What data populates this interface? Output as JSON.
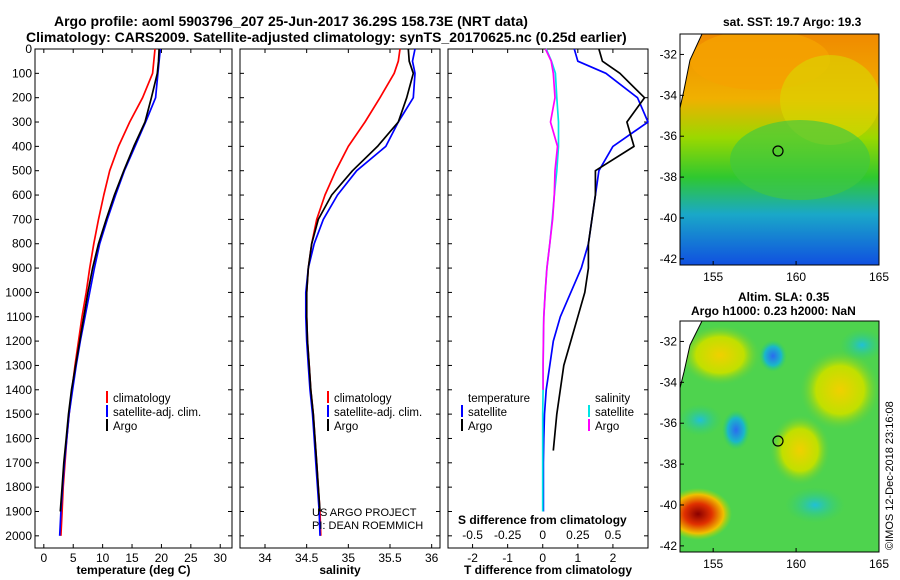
{
  "titles": {
    "line1": "Argo profile: aoml 5903796_207 25-Jun-2017 36.29S 158.73E (NRT data)",
    "line2": "Climatology: CARS2009. Satellite-adjusted climatology: synTS_20170625.nc (0.25d earlier)"
  },
  "colors": {
    "climatology": "#ff0000",
    "satellite": "#0000ff",
    "argo": "#000000",
    "s_sat": "#00e5e5",
    "s_argo": "#ff00ff"
  },
  "chart_data": [
    {
      "type": "line",
      "xlabel": "temperature (deg C)",
      "xlim": [
        -1.5,
        32
      ],
      "ylim": [
        2050,
        0
      ],
      "yticks": [
        0,
        100,
        200,
        300,
        400,
        500,
        600,
        700,
        800,
        900,
        1000,
        1100,
        1200,
        1300,
        1400,
        1500,
        1600,
        1700,
        1800,
        1900,
        2000
      ],
      "xticks": [
        0,
        5,
        10,
        15,
        20,
        25,
        30
      ],
      "legend": [
        "climatology",
        "satellite-adj. clim.",
        "Argo"
      ],
      "series": [
        {
          "name": "climatology",
          "color_key": "climatology",
          "x": [
            18.9,
            18.7,
            18.5,
            16.8,
            14.6,
            12.7,
            11.2,
            10.2,
            9.3,
            8.5,
            7.8,
            7.2,
            6.5,
            5.9,
            5.3,
            4.8,
            4.3,
            3.9,
            3.6,
            3.3,
            3.1,
            2.9
          ],
          "y": [
            0,
            50,
            100,
            200,
            300,
            400,
            500,
            600,
            700,
            800,
            900,
            1000,
            1100,
            1200,
            1300,
            1400,
            1500,
            1600,
            1700,
            1800,
            1900,
            2000
          ]
        },
        {
          "name": "satellite-adj. clim.",
          "color_key": "satellite",
          "x": [
            19.8,
            19.6,
            19.4,
            19.0,
            17.3,
            15.5,
            13.7,
            12.2,
            10.8,
            9.5,
            8.6,
            7.8,
            7.0,
            6.2,
            5.5,
            4.9,
            4.3,
            3.9,
            3.5,
            3.2,
            2.9,
            2.7
          ],
          "y": [
            0,
            50,
            100,
            200,
            300,
            400,
            500,
            600,
            700,
            800,
            900,
            1000,
            1100,
            1200,
            1300,
            1400,
            1500,
            1600,
            1700,
            1800,
            1900,
            2000
          ]
        },
        {
          "name": "Argo",
          "color_key": "argo",
          "x": [
            19.6,
            19.5,
            19.3,
            18.3,
            17.2,
            15.3,
            13.6,
            12.0,
            10.6,
            9.3,
            8.3,
            7.5,
            6.8,
            6.1,
            5.4,
            4.7,
            4.2,
            3.8,
            3.4,
            3.1,
            2.8
          ],
          "y": [
            0,
            50,
            100,
            200,
            300,
            400,
            500,
            600,
            700,
            800,
            900,
            1000,
            1100,
            1200,
            1300,
            1400,
            1500,
            1600,
            1700,
            1800,
            1900
          ]
        }
      ]
    },
    {
      "type": "line",
      "xlabel": "salinity",
      "xlim": [
        33.7,
        36.1
      ],
      "ylim": [
        2050,
        0
      ],
      "xticks": [
        34,
        34.5,
        35,
        35.5,
        36
      ],
      "xticklabels": [
        "34",
        "34.5",
        "35",
        "35.5",
        "36"
      ],
      "legend": [
        "climatology",
        "satellite-adj. clim.",
        "Argo"
      ],
      "annotation": [
        "US ARGO PROJECT",
        "PI: DEAN ROEMMICH"
      ],
      "series": [
        {
          "name": "climatology",
          "color_key": "climatology",
          "x": [
            35.62,
            35.6,
            35.55,
            35.38,
            35.2,
            35.0,
            34.85,
            34.72,
            34.62,
            34.56,
            34.52,
            34.5,
            34.5,
            34.51,
            34.53,
            34.55,
            34.58,
            34.6,
            34.62,
            34.64,
            34.66,
            34.67
          ],
          "y": [
            0,
            50,
            100,
            200,
            300,
            400,
            500,
            600,
            700,
            800,
            900,
            1000,
            1100,
            1200,
            1300,
            1400,
            1500,
            1600,
            1700,
            1800,
            1900,
            2000
          ]
        },
        {
          "name": "satellite-adj. clim.",
          "color_key": "satellite",
          "x": [
            35.8,
            35.77,
            35.8,
            35.78,
            35.6,
            35.45,
            35.1,
            34.87,
            34.7,
            34.59,
            34.52,
            34.49,
            34.49,
            34.5,
            34.52,
            34.54,
            34.57,
            34.59,
            34.61,
            34.63,
            34.65,
            34.66
          ],
          "y": [
            0,
            50,
            100,
            200,
            300,
            400,
            500,
            600,
            700,
            800,
            900,
            1000,
            1100,
            1200,
            1300,
            1400,
            1500,
            1600,
            1700,
            1800,
            1900,
            2000
          ]
        },
        {
          "name": "Argo",
          "color_key": "argo",
          "x": [
            35.72,
            35.73,
            35.78,
            35.7,
            35.6,
            35.35,
            35.05,
            34.8,
            34.64,
            34.56,
            34.52,
            34.5,
            34.5,
            34.51,
            34.53,
            34.55,
            34.58,
            34.6,
            34.62,
            34.64,
            34.66
          ],
          "y": [
            0,
            50,
            100,
            200,
            300,
            400,
            500,
            600,
            700,
            800,
            900,
            1000,
            1100,
            1200,
            1300,
            1400,
            1500,
            1600,
            1700,
            1800,
            1900
          ]
        }
      ]
    },
    {
      "type": "line",
      "xlabel": "T difference from climatology",
      "xlabel_top": "S difference from climatology",
      "xlim": [
        -2.7,
        3.0
      ],
      "ylim": [
        2050,
        0
      ],
      "xticks": [
        -2,
        -1,
        0,
        1,
        2
      ],
      "xticks_top": [
        -0.5,
        -0.25,
        0,
        0.25,
        0.5
      ],
      "xticks_top_labels": [
        "-0.5",
        "-0.25",
        "0",
        "0.25",
        "0.5"
      ],
      "legend_left": [
        "temperature",
        "satellite",
        "Argo"
      ],
      "legend_right": [
        "salinity",
        "satellite",
        "Argo"
      ],
      "series": [
        {
          "name": "satellite",
          "color_key": "satellite",
          "x": [
            0.9,
            1.0,
            1.8,
            2.7,
            3.0,
            2.0,
            1.6,
            1.5,
            1.4,
            1.3,
            1.1,
            0.8,
            0.5,
            0.3,
            0.2,
            0.1,
            0.05,
            0.03,
            0.02,
            0.02,
            0.02
          ],
          "y": [
            0,
            50,
            100,
            200,
            300,
            400,
            500,
            600,
            700,
            800,
            900,
            1000,
            1100,
            1200,
            1300,
            1400,
            1500,
            1600,
            1700,
            1800,
            1900
          ]
        },
        {
          "name": "Argo",
          "color_key": "argo",
          "x": [
            1.6,
            1.7,
            2.2,
            2.9,
            2.4,
            2.6,
            1.5,
            1.5,
            1.4,
            1.3,
            1.3,
            1.2,
            1.0,
            0.8,
            0.6,
            0.5,
            0.4,
            0.3
          ],
          "y": [
            0,
            50,
            100,
            200,
            300,
            400,
            500,
            600,
            700,
            800,
            900,
            1000,
            1100,
            1200,
            1300,
            1400,
            1500,
            1650
          ]
        },
        {
          "name": "S satellite",
          "color_key": "s_sat",
          "x": [
            0.1,
            0.25,
            0.36,
            0.4,
            0.45,
            0.45,
            0.4,
            0.33,
            0.27,
            0.2,
            0.12,
            0.07,
            0.03,
            0.02,
            0.01,
            0.01,
            0.0,
            0.0,
            0.0,
            0.0,
            0.0
          ],
          "y": [
            0,
            50,
            100,
            200,
            300,
            400,
            500,
            600,
            700,
            800,
            900,
            1000,
            1100,
            1200,
            1300,
            1400,
            1500,
            1600,
            1700,
            1800,
            1900
          ]
        },
        {
          "name": "S Argo",
          "color_key": "s_argo",
          "x": [
            0.08,
            0.24,
            0.3,
            0.35,
            0.22,
            0.42,
            0.35,
            0.33,
            0.28,
            0.2,
            0.12,
            0.07,
            0.03,
            0.02,
            0.01,
            0.01
          ],
          "y": [
            0,
            50,
            100,
            200,
            300,
            400,
            500,
            600,
            700,
            800,
            900,
            1000,
            1100,
            1200,
            1300,
            1400
          ]
        }
      ]
    },
    {
      "type": "heatmap",
      "title": "sat. SST: 19.7 Argo: 19.3",
      "xlim": [
        153,
        165
      ],
      "ylim": [
        -42.3,
        -31
      ],
      "xticks": [
        155,
        160,
        165
      ],
      "yticks": [
        -32,
        -34,
        -36,
        -38,
        -40,
        -42
      ],
      "marker": {
        "lon": 158.73,
        "lat": -36.29
      }
    },
    {
      "type": "heatmap",
      "title": "Altim. SLA: 0.35",
      "subtitle": "Argo h1000: 0.23 h2000: NaN",
      "xlim": [
        153,
        165
      ],
      "ylim": [
        -42.3,
        -31
      ],
      "xticks": [
        155,
        160,
        165
      ],
      "yticks": [
        -32,
        -34,
        -36,
        -38,
        -40,
        -42
      ],
      "marker": {
        "lon": 158.73,
        "lat": -36.29
      }
    }
  ],
  "watermark": "©IMOS 12-Dec-2018 23:16:08"
}
